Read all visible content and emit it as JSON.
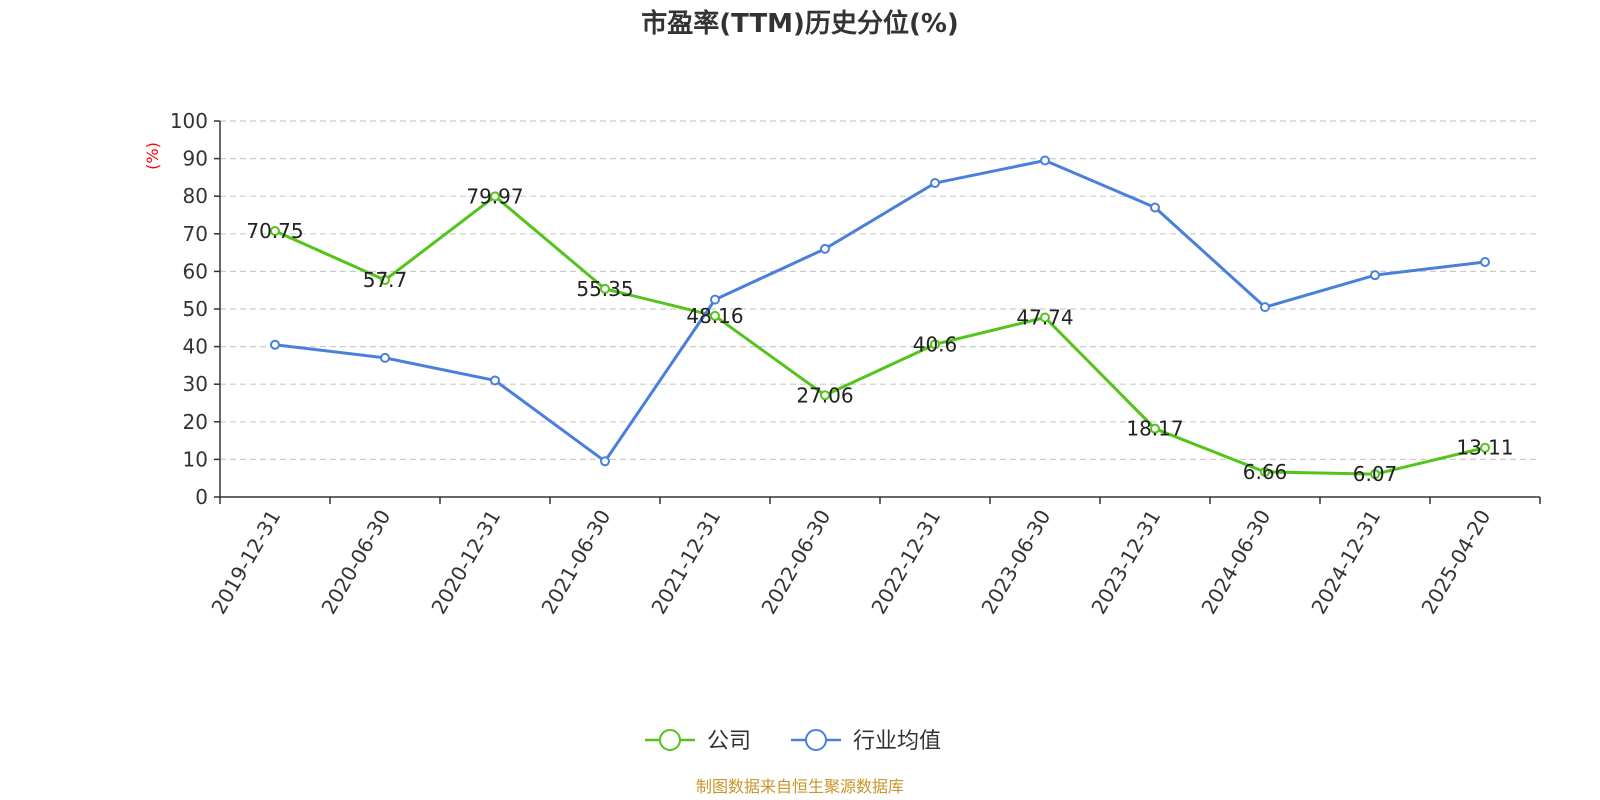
{
  "chart_data": {
    "type": "line",
    "title": "市盈率(TTM)历史分位(%)",
    "xlabel": "",
    "ylabel": "(%)",
    "ylim": [
      0,
      100
    ],
    "yticks": [
      0,
      10,
      20,
      30,
      40,
      50,
      60,
      70,
      80,
      90,
      100
    ],
    "grid": true,
    "legend_position": "bottom",
    "categories": [
      "2019-12-31",
      "2020-06-30",
      "2020-12-31",
      "2021-06-30",
      "2021-12-31",
      "2022-06-30",
      "2022-12-31",
      "2023-06-30",
      "2023-12-31",
      "2024-06-30",
      "2024-12-31",
      "2025-04-20"
    ],
    "series": [
      {
        "name": "公司",
        "color": "#52c41a",
        "values": [
          70.75,
          57.7,
          79.97,
          55.35,
          48.16,
          27.06,
          40.6,
          47.74,
          18.17,
          6.66,
          6.07,
          13.11
        ],
        "labels": [
          "70.75",
          "57.7",
          "79.97",
          "55.35",
          "48.16",
          "27.06",
          "40.6",
          "47.74",
          "18.17",
          "6.66",
          "6.07",
          "13.11"
        ]
      },
      {
        "name": "行业均值",
        "color": "#4a80dc",
        "values": [
          40.5,
          37,
          31,
          9.5,
          52.5,
          66,
          83.5,
          89.5,
          77,
          50.5,
          59,
          62.5
        ]
      }
    ]
  },
  "source_text": "制图数据来自恒生聚源数据库"
}
